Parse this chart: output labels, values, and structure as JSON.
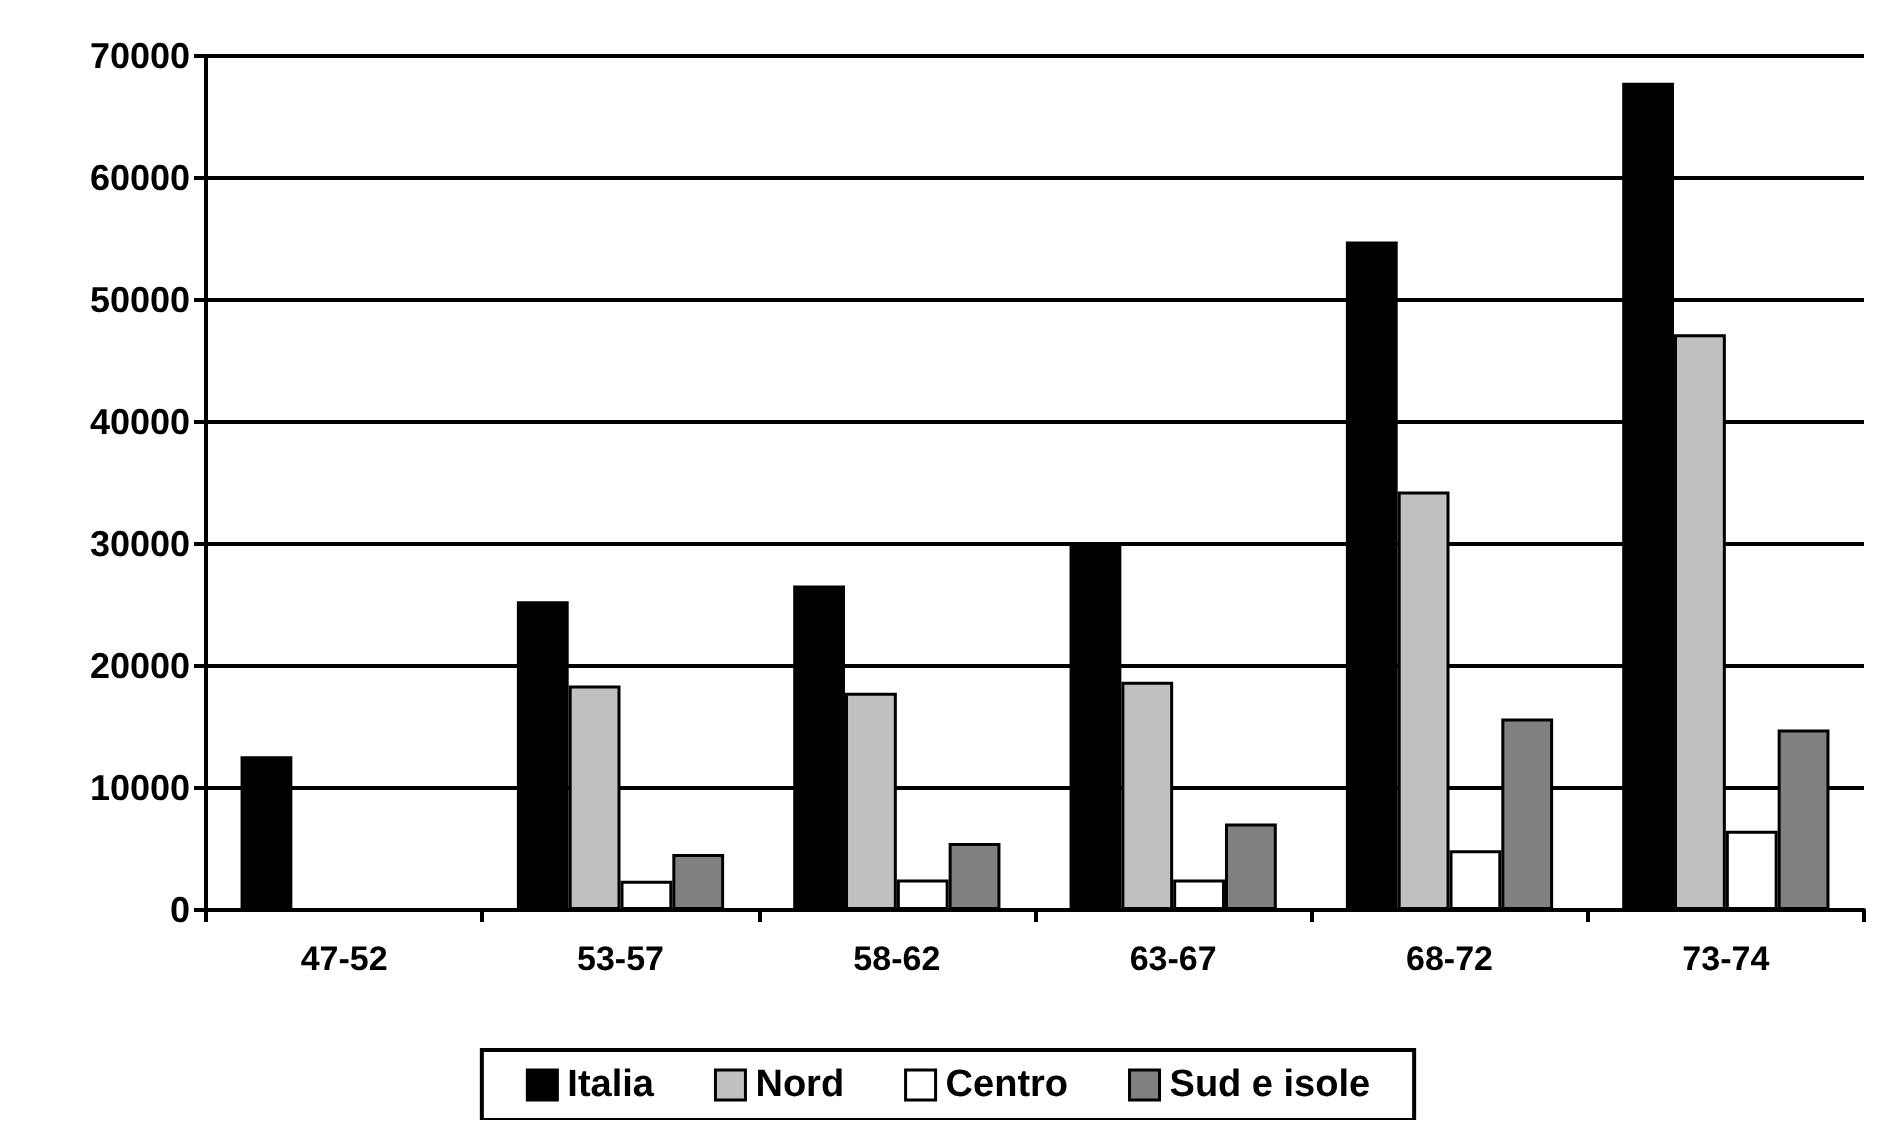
{
  "chart_data": {
    "type": "bar",
    "categories": [
      "47-52",
      "53-57",
      "58-62",
      "63-67",
      "68-72",
      "73-74"
    ],
    "series": [
      {
        "name": "Italia",
        "color": "#000000",
        "values": [
          12600,
          25300,
          26600,
          29900,
          54800,
          67800
        ]
      },
      {
        "name": "Nord",
        "color": "#c0c0c0",
        "values": [
          null,
          18400,
          17800,
          18700,
          34300,
          47200
        ]
      },
      {
        "name": "Centro",
        "color": "#ffffff",
        "values": [
          null,
          2400,
          2500,
          2500,
          4900,
          6500
        ]
      },
      {
        "name": "Sud e isole",
        "color": "#808080",
        "values": [
          null,
          4600,
          5500,
          7100,
          15700,
          14800
        ]
      }
    ],
    "ylim": [
      0,
      70000
    ],
    "yticks": [
      0,
      10000,
      20000,
      30000,
      40000,
      50000,
      60000,
      70000
    ],
    "grid": "y",
    "legend": "bottom"
  }
}
